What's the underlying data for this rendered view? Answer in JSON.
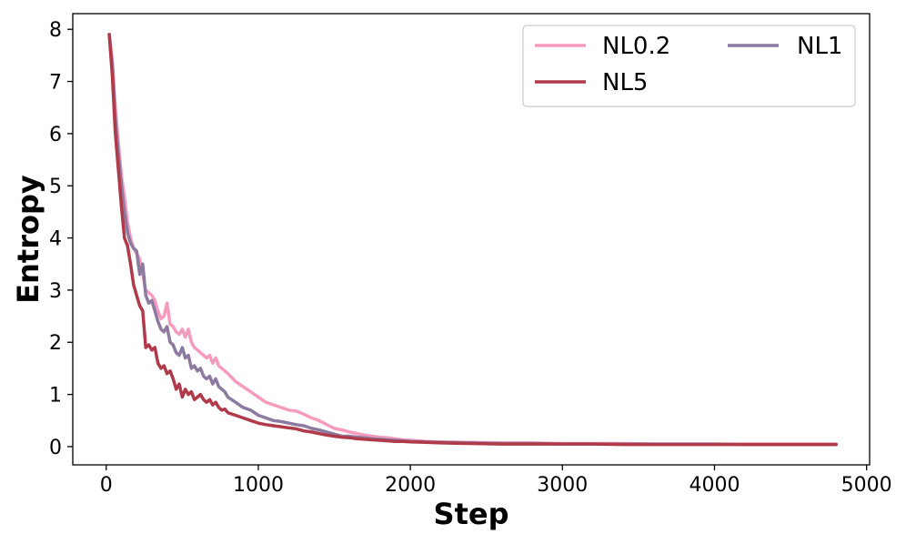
{
  "chart_data": {
    "type": "line",
    "title": "",
    "xlabel": "Step",
    "ylabel": "Entropy",
    "xlim": [
      -220,
      5020
    ],
    "ylim": [
      -0.35,
      8.3
    ],
    "xticks": [
      0,
      1000,
      2000,
      3000,
      4000,
      5000
    ],
    "yticks": [
      0,
      1,
      2,
      3,
      4,
      5,
      6,
      7,
      8
    ],
    "grid": false,
    "legend": {
      "placement": "top-right",
      "columns": 2
    },
    "series": [
      {
        "name": "NL0.2",
        "color": "#f59bbd",
        "x": [
          20,
          40,
          60,
          80,
          100,
          120,
          140,
          160,
          180,
          200,
          220,
          240,
          260,
          280,
          300,
          320,
          340,
          360,
          380,
          400,
          420,
          440,
          460,
          480,
          500,
          520,
          540,
          560,
          580,
          600,
          620,
          640,
          660,
          680,
          700,
          720,
          740,
          760,
          780,
          800,
          850,
          900,
          950,
          1000,
          1050,
          1100,
          1150,
          1200,
          1250,
          1300,
          1350,
          1400,
          1450,
          1500,
          1550,
          1600,
          1650,
          1700,
          1750,
          1800,
          1850,
          1900,
          1950,
          2000,
          2100,
          2200,
          2400,
          2600,
          2800,
          3000,
          3200,
          3400,
          3600,
          3800,
          4000,
          4200,
          4400,
          4600,
          4800
        ],
        "y": [
          7.9,
          7.4,
          6.5,
          5.8,
          5.2,
          4.8,
          4.3,
          4.0,
          3.8,
          3.7,
          3.6,
          3.3,
          3.0,
          2.95,
          2.9,
          2.8,
          2.6,
          2.45,
          2.5,
          2.75,
          2.35,
          2.3,
          2.2,
          2.15,
          2.25,
          2.1,
          2.25,
          2.0,
          1.9,
          1.85,
          1.8,
          1.75,
          1.7,
          1.75,
          1.6,
          1.7,
          1.55,
          1.5,
          1.45,
          1.4,
          1.25,
          1.15,
          1.05,
          0.95,
          0.85,
          0.8,
          0.75,
          0.7,
          0.68,
          0.62,
          0.55,
          0.5,
          0.42,
          0.35,
          0.32,
          0.28,
          0.25,
          0.22,
          0.2,
          0.18,
          0.17,
          0.15,
          0.13,
          0.12,
          0.1,
          0.09,
          0.08,
          0.07,
          0.07,
          0.06,
          0.06,
          0.06,
          0.05,
          0.05,
          0.05,
          0.05,
          0.05,
          0.05,
          0.05
        ]
      },
      {
        "name": "NL1",
        "color": "#8d7aa0",
        "x": [
          20,
          40,
          60,
          80,
          100,
          120,
          140,
          160,
          180,
          200,
          220,
          240,
          260,
          280,
          300,
          320,
          340,
          360,
          380,
          400,
          420,
          440,
          460,
          480,
          500,
          520,
          540,
          560,
          580,
          600,
          620,
          640,
          660,
          680,
          700,
          720,
          740,
          760,
          780,
          800,
          850,
          900,
          950,
          1000,
          1050,
          1100,
          1150,
          1200,
          1250,
          1300,
          1350,
          1400,
          1450,
          1500,
          1550,
          1600,
          1650,
          1700,
          1750,
          1800,
          1850,
          1900,
          1950,
          2000,
          2100,
          2200,
          2400,
          2600,
          2800,
          3000,
          3200,
          3400,
          3600,
          3800,
          4000,
          4200,
          4400,
          4600,
          4800
        ],
        "y": [
          7.9,
          7.3,
          6.3,
          5.6,
          5.0,
          4.5,
          4.1,
          3.9,
          3.8,
          3.75,
          3.3,
          3.5,
          2.9,
          2.75,
          2.8,
          2.6,
          2.4,
          2.25,
          2.2,
          2.3,
          2.0,
          1.95,
          1.8,
          1.75,
          1.9,
          1.7,
          1.75,
          1.5,
          1.55,
          1.45,
          1.5,
          1.35,
          1.3,
          1.35,
          1.2,
          1.3,
          1.15,
          1.1,
          1.05,
          0.95,
          0.85,
          0.75,
          0.7,
          0.6,
          0.55,
          0.5,
          0.48,
          0.45,
          0.42,
          0.4,
          0.35,
          0.32,
          0.28,
          0.24,
          0.2,
          0.2,
          0.18,
          0.17,
          0.15,
          0.14,
          0.13,
          0.12,
          0.11,
          0.1,
          0.09,
          0.08,
          0.07,
          0.06,
          0.06,
          0.05,
          0.05,
          0.05,
          0.05,
          0.05,
          0.05,
          0.04,
          0.04,
          0.04,
          0.04
        ]
      },
      {
        "name": "NL5",
        "color": "#b03a4a",
        "x": [
          20,
          40,
          60,
          80,
          100,
          120,
          140,
          160,
          180,
          200,
          220,
          240,
          260,
          280,
          300,
          320,
          340,
          360,
          380,
          400,
          420,
          440,
          460,
          480,
          500,
          520,
          540,
          560,
          580,
          600,
          620,
          640,
          660,
          680,
          700,
          720,
          740,
          760,
          780,
          800,
          850,
          900,
          950,
          1000,
          1050,
          1100,
          1150,
          1200,
          1250,
          1300,
          1350,
          1400,
          1450,
          1500,
          1550,
          1600,
          1650,
          1700,
          1750,
          1800,
          1850,
          1900,
          1950,
          2000,
          2100,
          2200,
          2400,
          2600,
          2800,
          3000,
          3200,
          3400,
          3600,
          3800,
          4000,
          4200,
          4400,
          4600,
          4800
        ],
        "y": [
          7.9,
          7.1,
          6.0,
          5.3,
          4.6,
          4.0,
          3.85,
          3.5,
          3.1,
          2.9,
          2.7,
          2.6,
          1.9,
          1.95,
          1.85,
          1.9,
          1.6,
          1.5,
          1.55,
          1.4,
          1.45,
          1.3,
          1.1,
          1.2,
          0.95,
          1.1,
          1.0,
          1.05,
          0.9,
          0.95,
          1.0,
          0.9,
          0.85,
          0.9,
          0.8,
          0.85,
          0.75,
          0.7,
          0.72,
          0.65,
          0.6,
          0.55,
          0.5,
          0.45,
          0.42,
          0.4,
          0.38,
          0.36,
          0.34,
          0.3,
          0.28,
          0.25,
          0.22,
          0.2,
          0.18,
          0.17,
          0.15,
          0.14,
          0.13,
          0.12,
          0.11,
          0.1,
          0.1,
          0.09,
          0.08,
          0.07,
          0.06,
          0.05,
          0.05,
          0.05,
          0.05,
          0.04,
          0.04,
          0.04,
          0.04,
          0.04,
          0.04,
          0.04,
          0.04
        ]
      }
    ]
  }
}
